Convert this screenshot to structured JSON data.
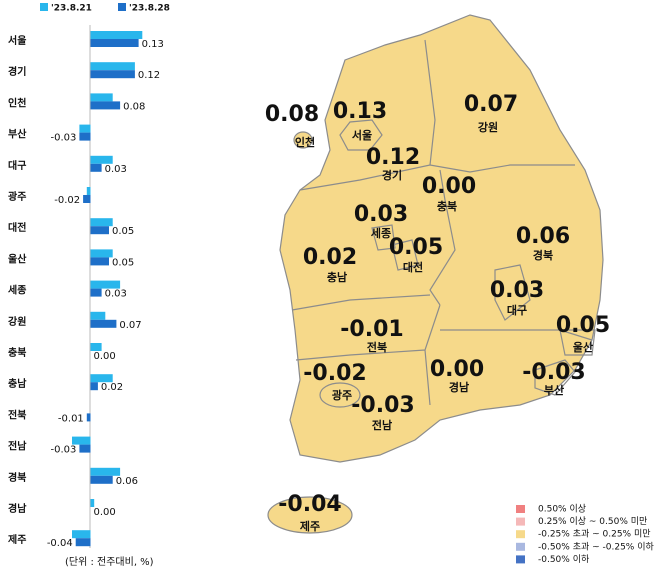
{
  "chart_data": {
    "type": "bar",
    "orientation": "horizontal",
    "categories": [
      "서울",
      "경기",
      "인천",
      "부산",
      "대구",
      "광주",
      "대전",
      "울산",
      "세종",
      "강원",
      "충북",
      "충남",
      "전북",
      "전남",
      "경북",
      "경남",
      "제주"
    ],
    "series": [
      {
        "name": "'23.8.21",
        "color": "#29B6EC",
        "values": [
          0.14,
          0.12,
          0.06,
          -0.03,
          0.06,
          -0.01,
          0.06,
          0.06,
          0.08,
          0.04,
          0.03,
          0.06,
          0.0,
          -0.05,
          0.08,
          0.01,
          -0.05
        ]
      },
      {
        "name": "'23.8.28",
        "color": "#1E6FC8",
        "values": [
          0.13,
          0.12,
          0.08,
          -0.03,
          0.03,
          -0.02,
          0.05,
          0.05,
          0.03,
          0.07,
          0.0,
          0.02,
          -0.01,
          -0.03,
          0.06,
          0.0,
          -0.04
        ],
        "value_labels": [
          "0.13",
          "0.12",
          "0.08",
          "-0.03",
          "0.03",
          "-0.02",
          "0.05",
          "0.05",
          "0.03",
          "0.07",
          "0.00",
          "0.02",
          "-0.01",
          "-0.03",
          "0.06",
          "0.00",
          "-0.04"
        ]
      }
    ],
    "xlim": [
      -0.15,
      0.16
    ],
    "unit_note": "(단위 : 전주대비, %)",
    "map_legend": [
      {
        "label": "0.50% 이상",
        "color": "#F08080"
      },
      {
        "label": "0.25% 이상 ~ 0.50% 미만",
        "color": "#F5B8B8"
      },
      {
        "label": "-0.25% 초과 ~ 0.25% 미만",
        "color": "#F6D98A"
      },
      {
        "label": "-0.50% 초과 ~ -0.25% 이하",
        "color": "#A9B8E0"
      },
      {
        "label": "-0.50% 이하",
        "color": "#4472C4"
      }
    ]
  }
}
